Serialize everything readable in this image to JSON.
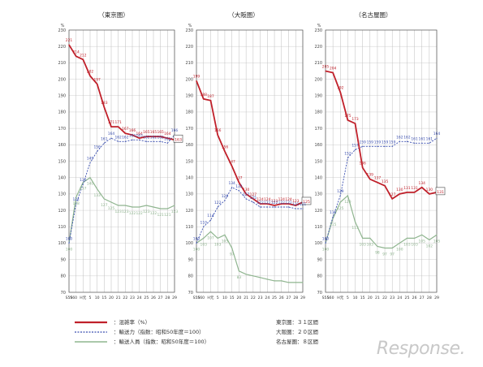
{
  "chart_data": [
    {
      "type": "line",
      "title": "（東京圏）",
      "categories": [
        "S55",
        "S60",
        "H元",
        "5",
        "10",
        "15",
        "20",
        "21",
        "22",
        "23",
        "24",
        "25",
        "26",
        "27",
        "28",
        "29"
      ],
      "ylim": [
        70,
        230
      ],
      "yticks": [
        70,
        80,
        90,
        100,
        110,
        120,
        130,
        140,
        150,
        160,
        170,
        180,
        190,
        200,
        210,
        220,
        230
      ],
      "yunit": "%",
      "series": [
        {
          "key": "congestion",
          "color": "#c0202a",
          "style": "solid",
          "values": [
            221,
            214,
            212,
            202,
            197,
            183,
            171,
            171,
            167,
            166,
            164,
            165,
            165,
            165,
            164,
            163
          ],
          "labels": [
            "221",
            "214",
            "212",
            "202",
            "197",
            "183",
            "171",
            "171",
            "167",
            "166",
            "164",
            "165",
            "165",
            "165",
            "164",
            "163"
          ]
        },
        {
          "key": "capacity",
          "color": "#3a4fb0",
          "style": "dotted",
          "values": [
            100,
            124,
            136,
            149,
            156,
            161,
            164,
            162,
            162,
            163,
            163,
            162,
            162,
            162,
            161,
            166
          ],
          "labels": [
            "100",
            "124",
            "136",
            "149",
            "156",
            "161",
            "164",
            "162",
            "162",
            "163",
            "163",
            "162",
            "162",
            "162",
            "161",
            "166"
          ]
        },
        {
          "key": "passengers",
          "color": "#8fb58f",
          "style": "solid",
          "values": [
            100,
            128,
            137,
            140,
            133,
            127,
            125,
            123,
            123,
            122,
            122,
            123,
            122,
            121,
            121,
            123
          ],
          "labels": [
            "100",
            "128",
            "137",
            "140",
            "133",
            "127",
            "125",
            "123",
            "123",
            "122",
            "122",
            "123",
            "122",
            "121",
            "121",
            "123"
          ]
        }
      ]
    },
    {
      "type": "line",
      "title": "（大阪圏）",
      "categories": [
        "S55",
        "S60",
        "H元",
        "5",
        "10",
        "15",
        "20",
        "21",
        "22",
        "23",
        "24",
        "25",
        "26",
        "27",
        "28",
        "29"
      ],
      "ylim": [
        70,
        230
      ],
      "yticks": [
        70,
        80,
        90,
        100,
        110,
        120,
        130,
        140,
        150,
        160,
        170,
        180,
        190,
        200,
        210,
        220,
        230
      ],
      "yunit": "%",
      "series": [
        {
          "key": "congestion",
          "color": "#c0202a",
          "style": "solid",
          "values": [
            199,
            188,
            187,
            166,
            156,
            147,
            137,
            130,
            127,
            124,
            124,
            123,
            124,
            124,
            123,
            125
          ],
          "labels": [
            "199",
            "188",
            "187",
            "166",
            "156",
            "147",
            "137",
            "130",
            "127",
            "124",
            "124",
            "123",
            "124",
            "124",
            "123",
            "125"
          ]
        },
        {
          "key": "capacity",
          "color": "#3a4fb0",
          "style": "dotted",
          "values": [
            100,
            110,
            114,
            122,
            126,
            134,
            132,
            127,
            125,
            122,
            122,
            122,
            122,
            122,
            121,
            121
          ],
          "labels": [
            "100",
            "110",
            "114",
            "122",
            "126",
            "134",
            "132",
            "127",
            "125",
            "122",
            "122",
            "122",
            "122",
            "122",
            "121",
            "121"
          ]
        },
        {
          "key": "passengers",
          "color": "#8fb58f",
          "style": "solid",
          "values": [
            100,
            103,
            107,
            103,
            105,
            97,
            83,
            81,
            80,
            79,
            78,
            77,
            77,
            76,
            76,
            76
          ],
          "labels": [
            "100",
            "103",
            "107",
            "103",
            "105",
            "97",
            "83",
            "",
            "",
            "",
            "",
            "",
            "",
            "",
            "",
            ""
          ]
        }
      ]
    },
    {
      "type": "line",
      "title": "（名古屋圏）",
      "categories": [
        "S55",
        "S60",
        "H元",
        "5",
        "10",
        "15",
        "20",
        "21",
        "22",
        "23",
        "24",
        "25",
        "26",
        "27",
        "28",
        "29"
      ],
      "ylim": [
        70,
        230
      ],
      "yticks": [
        70,
        80,
        90,
        100,
        110,
        120,
        130,
        140,
        150,
        160,
        170,
        180,
        190,
        200,
        210,
        220,
        230
      ],
      "yunit": "%",
      "series": [
        {
          "key": "congestion",
          "color": "#c0202a",
          "style": "solid",
          "values": [
            205,
            204,
            192,
            175,
            173,
            146,
            139,
            137,
            135,
            127,
            130,
            131,
            131,
            134,
            130,
            131
          ],
          "labels": [
            "205",
            "204",
            "192",
            "175",
            "173",
            "146",
            "139",
            "137",
            "135",
            "127",
            "130",
            "131",
            "131",
            "134",
            "130",
            "131"
          ]
        },
        {
          "key": "capacity",
          "color": "#3a4fb0",
          "style": "dotted",
          "values": [
            100,
            116,
            129,
            152,
            157,
            159,
            159,
            159,
            159,
            159,
            162,
            162,
            161,
            161,
            161,
            164
          ],
          "labels": [
            "100",
            "116",
            "129",
            "152",
            "157",
            "159",
            "159",
            "159",
            "159",
            "159",
            "162",
            "162",
            "161",
            "161",
            "161",
            "164"
          ]
        },
        {
          "key": "passengers",
          "color": "#8fb58f",
          "style": "solid",
          "values": [
            100,
            115,
            125,
            129,
            113,
            103,
            103,
            98,
            97,
            97,
            100,
            103,
            103,
            105,
            102,
            105
          ],
          "labels": [
            "100",
            "115",
            "125",
            "129",
            "113",
            "103",
            "103",
            "98",
            "97",
            "97",
            "100",
            "103",
            "103",
            "105",
            "102",
            "105"
          ]
        }
      ]
    }
  ],
  "legend": [
    {
      "key": "congestion",
      "label": "：混雑率（%）"
    },
    {
      "key": "capacity",
      "label": "：輸送力（指数：昭和50年度＝100）"
    },
    {
      "key": "passengers",
      "label": "：輸送人員（指数：昭和50年度＝100）"
    }
  ],
  "notes": [
    "東京圏：３１区間",
    "大阪圏：２０区間",
    "名古屋圏：８区間"
  ],
  "watermark": "Response."
}
